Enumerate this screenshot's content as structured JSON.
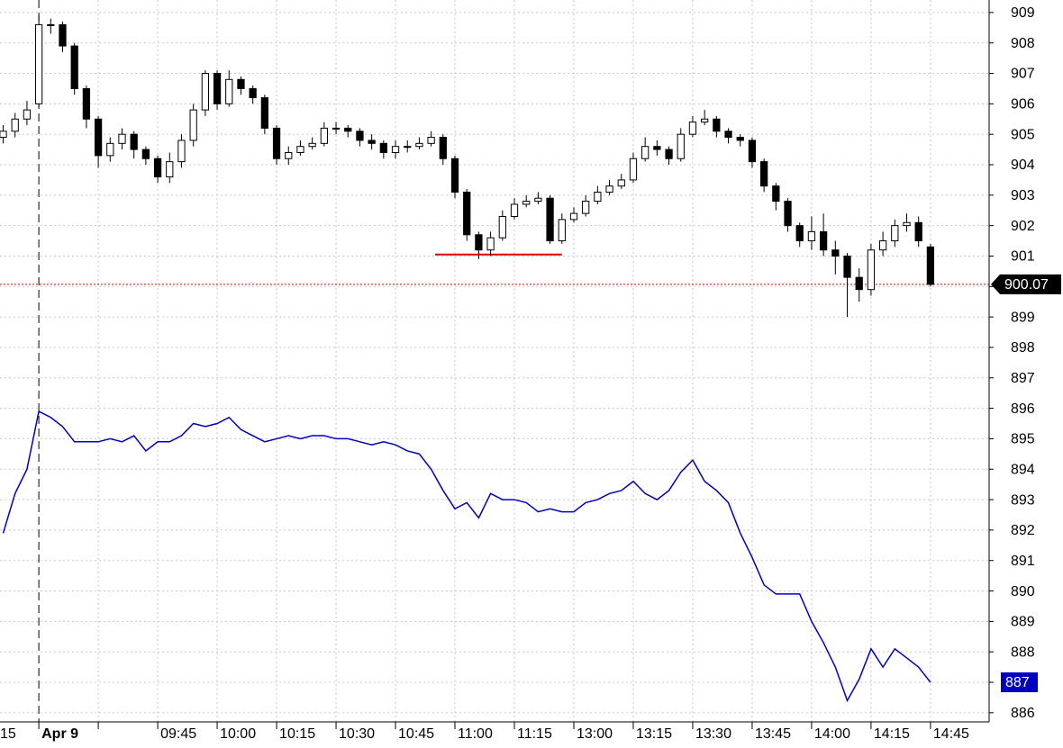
{
  "chart_data": {
    "type": "candlestick",
    "xlim": [
      -9.8,
      239.8
    ],
    "ylim": [
      885.7,
      909.41
    ],
    "grid": true,
    "xticks": [
      {
        "value": -11,
        "label": "15"
      },
      {
        "value": 0,
        "label": "Apr 9"
      },
      {
        "value": 15,
        "label": null
      },
      {
        "value": 30,
        "label": "09:45"
      },
      {
        "value": 45,
        "label": "10:00"
      },
      {
        "value": 60,
        "label": "10:15"
      },
      {
        "value": 75,
        "label": "10:30"
      },
      {
        "value": 90,
        "label": "10:45"
      },
      {
        "value": 105,
        "label": "11:00"
      },
      {
        "value": 120,
        "label": "11:15"
      },
      {
        "value": 135,
        "label": "13:00"
      },
      {
        "value": 150,
        "label": "13:15"
      },
      {
        "value": 165,
        "label": "13:30"
      },
      {
        "value": 180,
        "label": "13:45"
      },
      {
        "value": 195,
        "label": "14:00"
      },
      {
        "value": 210,
        "label": "14:15"
      },
      {
        "value": 225,
        "label": "14:45"
      }
    ],
    "yticks": [
      886,
      887,
      888,
      889,
      890,
      891,
      892,
      893,
      894,
      895,
      896,
      897,
      898,
      899,
      900,
      901,
      902,
      903,
      904,
      905,
      906,
      907,
      908,
      909
    ],
    "candles": {
      "up_color": "#ffffff",
      "down_color": "#000000",
      "x": [
        -9,
        -6,
        -3,
        0,
        3,
        6,
        9,
        12,
        15,
        18,
        21,
        24,
        27,
        30,
        33,
        36,
        39,
        42,
        45,
        48,
        51,
        54,
        57,
        60,
        63,
        66,
        69,
        72,
        75,
        78,
        81,
        84,
        87,
        90,
        93,
        96,
        99,
        102,
        105,
        108,
        111,
        114,
        117,
        120,
        123,
        126,
        129,
        132,
        135,
        138,
        141,
        144,
        147,
        150,
        153,
        156,
        159,
        162,
        165,
        168,
        171,
        174,
        177,
        180,
        183,
        186,
        189,
        192,
        195,
        198,
        201,
        204,
        207,
        210,
        213,
        216,
        219,
        222,
        225
      ],
      "open": [
        904.9,
        905.1,
        905.5,
        906.0,
        908.6,
        908.6,
        907.9,
        906.5,
        905.5,
        904.3,
        904.7,
        905,
        904.5,
        904.2,
        903.6,
        904.1,
        904.8,
        905.8,
        907,
        906,
        906.8,
        906.5,
        906.2,
        905.2,
        904.2,
        904.4,
        904.6,
        904.7,
        905.2,
        905.2,
        905.1,
        904.8,
        904.7,
        904.4,
        904.6,
        904.6,
        904.7,
        904.9,
        904.2,
        903.1,
        901.7,
        901.2,
        901.6,
        902.3,
        902.7,
        902.8,
        902.9,
        901.5,
        902.2,
        902.4,
        902.8,
        903.1,
        903.3,
        903.5,
        904.2,
        904.6,
        904.5,
        904.2,
        905,
        905.4,
        905.5,
        905.1,
        904.9,
        904.8,
        904.1,
        903.3,
        902.8,
        902,
        901.5,
        901.8,
        901.2,
        901,
        900.3,
        899.9,
        901.2,
        901.5,
        902,
        902.1,
        901.3
      ],
      "high": [
        905.3,
        905.7,
        906.1,
        908.9,
        908.8,
        908.7,
        908.0,
        906.6,
        905.6,
        904.9,
        905.2,
        905.1,
        904.6,
        904.3,
        904.4,
        905.0,
        906.0,
        907.1,
        907.1,
        907.1,
        906.9,
        906.6,
        906.3,
        905.3,
        904.6,
        904.8,
        904.9,
        905.4,
        905.4,
        905.3,
        905.2,
        905.0,
        904.8,
        904.8,
        904.8,
        904.9,
        905.1,
        905.0,
        904.3,
        903.2,
        901.8,
        901.8,
        902.5,
        902.9,
        903.0,
        903.1,
        903.0,
        902.4,
        902.6,
        903.0,
        903.3,
        903.5,
        903.7,
        904.4,
        904.9,
        904.8,
        904.6,
        905.2,
        905.6,
        905.8,
        905.6,
        905.2,
        905.0,
        904.9,
        904.2,
        903.4,
        902.9,
        902.1,
        902.3,
        902.4,
        901.5,
        901.1,
        900.6,
        901.4,
        901.8,
        902.2,
        902.4,
        902.3,
        901.4
      ],
      "low": [
        904.7,
        904.9,
        905.3,
        905.9,
        908.3,
        907.7,
        906.3,
        905.2,
        903.9,
        904.1,
        904.5,
        904.2,
        904.0,
        903.4,
        903.4,
        903.9,
        904.6,
        905.6,
        905.8,
        905.9,
        906.3,
        906.0,
        905.0,
        904.0,
        904.0,
        904.3,
        904.5,
        904.6,
        905.0,
        904.9,
        904.6,
        904.5,
        904.2,
        904.2,
        904.4,
        904.5,
        904.6,
        904.0,
        902.9,
        901.5,
        900.9,
        901.0,
        901.5,
        902.2,
        902.6,
        902.7,
        901.4,
        901.4,
        902.1,
        902.3,
        902.7,
        903.0,
        903.2,
        903.4,
        904.1,
        904.3,
        904.0,
        904.1,
        904.9,
        905.3,
        904.9,
        904.7,
        904.6,
        903.9,
        903.1,
        902.5,
        901.8,
        901.3,
        901.2,
        901.0,
        900.4,
        899.0,
        899.5,
        899.7,
        901.0,
        901.3,
        901.8,
        901.3,
        900.0
      ],
      "close": [
        905.1,
        905.5,
        905.8,
        908.6,
        908.6,
        907.9,
        906.5,
        905.5,
        904.3,
        904.7,
        905,
        904.5,
        904.2,
        903.6,
        904.1,
        904.8,
        905.8,
        907,
        906,
        906.8,
        906.5,
        906.2,
        905.2,
        904.2,
        904.4,
        904.6,
        904.7,
        905.2,
        905.2,
        905.1,
        904.8,
        904.7,
        904.4,
        904.6,
        904.6,
        904.7,
        904.9,
        904.2,
        903.1,
        901.7,
        901.2,
        901.6,
        902.3,
        902.7,
        902.8,
        902.9,
        901.5,
        902.2,
        902.4,
        902.8,
        903.1,
        903.3,
        903.5,
        904.2,
        904.6,
        904.5,
        904.2,
        905,
        905.4,
        905.5,
        905.1,
        904.9,
        904.8,
        904.1,
        903.3,
        902.8,
        902,
        901.5,
        901.8,
        901.2,
        901,
        900.3,
        899.9,
        901.2,
        901.5,
        902,
        902.1,
        901.5,
        900.07
      ],
      "last_color": "#000000"
    },
    "line": {
      "color": "#0000c0",
      "values": [
        891.9,
        893.2,
        894,
        895.9,
        895.7,
        895.4,
        894.9,
        894.9,
        894.9,
        895,
        894.9,
        895.1,
        894.6,
        894.9,
        894.9,
        895.1,
        895.5,
        895.4,
        895.5,
        895.7,
        895.3,
        895.1,
        894.9,
        895,
        895.1,
        895,
        895.1,
        895.1,
        895,
        895,
        894.9,
        894.8,
        894.9,
        894.8,
        894.6,
        894.5,
        894,
        893.3,
        892.7,
        892.9,
        892.4,
        893.2,
        893,
        893,
        892.9,
        892.6,
        892.7,
        892.6,
        892.6,
        892.9,
        893,
        893.2,
        893.3,
        893.6,
        893.2,
        893,
        893.3,
        893.9,
        894.3,
        893.6,
        893.3,
        892.9,
        891.9,
        891.1,
        890.2,
        889.9,
        889.9,
        889.9,
        889,
        888.3,
        887.5,
        886.4,
        887.1,
        888.1,
        887.5,
        888.1,
        887.8,
        887.5,
        887
      ]
    },
    "support": {
      "value": 901.05,
      "x": [
        100,
        132
      ],
      "color": "#e00000"
    },
    "last_line_color": "#e00000"
  }
}
